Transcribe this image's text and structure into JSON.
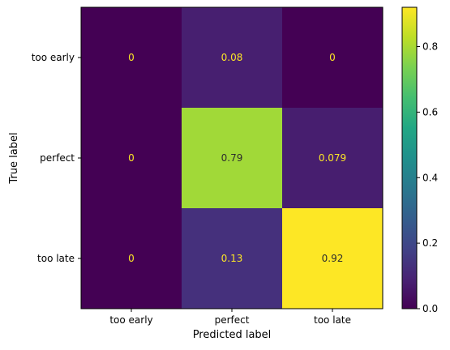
{
  "chart_data": {
    "type": "heatmap",
    "title": "",
    "xlabel": "Predicted label",
    "ylabel": "True label",
    "x_categories": [
      "too early",
      "perfect",
      "too late"
    ],
    "y_categories": [
      "too early",
      "perfect",
      "too late"
    ],
    "values": [
      [
        0,
        0.08,
        0
      ],
      [
        0,
        0.79,
        0.079
      ],
      [
        0,
        0.13,
        0.92
      ]
    ],
    "cell_labels": [
      [
        "0",
        "0.08",
        "0"
      ],
      [
        "0",
        "0.79",
        "0.079"
      ],
      [
        "0",
        "0.13",
        "0.92"
      ]
    ],
    "colormap": "viridis",
    "vmin": 0,
    "vmax": 0.92,
    "colorbar_ticks": [
      "0.0",
      "0.2",
      "0.4",
      "0.6",
      "0.8"
    ],
    "colorbar_tick_values": [
      0,
      0.2,
      0.4,
      0.6,
      0.8
    ],
    "text_color_dark_cells": "#fde725",
    "text_color_light_cells": "#2d2d2d"
  }
}
